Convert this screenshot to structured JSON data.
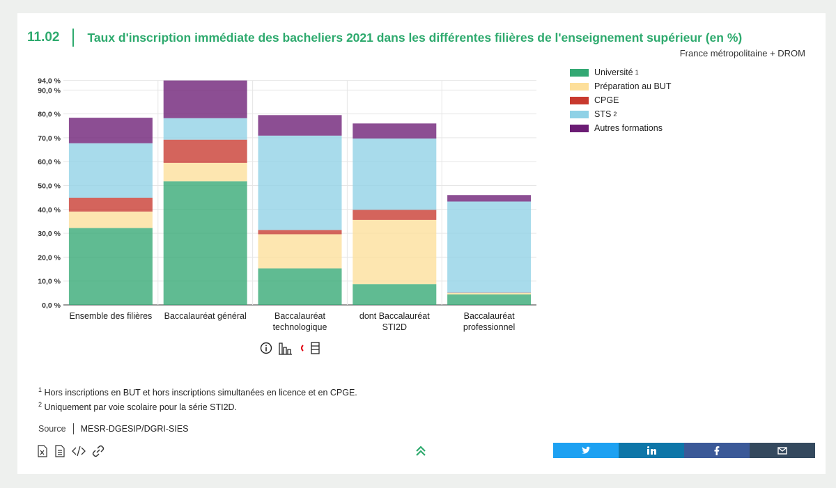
{
  "header": {
    "number": "11.02",
    "title": "Taux d'inscription immédiate des bacheliers 2021 dans les différentes filières de l'enseignement supérieur (en %)",
    "scope": "France métropolitaine + DROM"
  },
  "legend": [
    {
      "label": "Université",
      "sup": "1",
      "color": "#33a873"
    },
    {
      "label": "Préparation au BUT",
      "sup": "",
      "color": "#fddf9a"
    },
    {
      "label": "CPGE",
      "sup": "",
      "color": "#c8392e"
    },
    {
      "label": "STS",
      "sup": "2",
      "color": "#8fd1e6"
    },
    {
      "label": "Autres formations",
      "sup": "",
      "color": "#6b1c74"
    }
  ],
  "chart_data": {
    "type": "bar",
    "stacked": true,
    "categories": [
      "Ensemble des filières",
      "Baccalauréat général",
      "Baccalauréat technologique",
      "dont Baccalauréat STI2D",
      "Baccalauréat professionnel"
    ],
    "series": [
      {
        "name": "Université",
        "values": [
          32.2,
          51.8,
          15.3,
          8.7,
          4.4
        ]
      },
      {
        "name": "Préparation au BUT",
        "values": [
          6.9,
          7.7,
          14.3,
          26.9,
          0.6
        ]
      },
      {
        "name": "CPGE",
        "values": [
          5.8,
          9.7,
          1.8,
          4.2,
          0.1
        ]
      },
      {
        "name": "STS",
        "values": [
          22.8,
          9.0,
          39.5,
          29.9,
          38.2
        ]
      },
      {
        "name": "Autres formations",
        "values": [
          10.7,
          15.8,
          8.6,
          6.3,
          2.7
        ]
      }
    ],
    "yticks": [
      "0,0 %",
      "10,0 %",
      "20,0 %",
      "30,0 %",
      "40,0 %",
      "50,0 %",
      "60,0 %",
      "70,0 %",
      "80,0 %",
      "90,0 %",
      "94,0 %"
    ],
    "ylim": [
      0,
      94
    ],
    "grid": true,
    "legend_position": "top-right"
  },
  "notes": {
    "note1": "Hors inscriptions en BUT et hors inscriptions simultanées en licence et en CPGE.",
    "note2": "Uniquement par voie scolaire pour la série STI2D.",
    "note1_num": "1",
    "note2_num": "2"
  },
  "source": {
    "label": "Source",
    "value": "MESR-DGESIP/DGRI-SIES"
  },
  "tools": [
    "excel-icon",
    "document-icon",
    "code-icon",
    "link-icon"
  ],
  "share": [
    {
      "icon": "twitter-icon",
      "color": "#1da1f2"
    },
    {
      "icon": "linkedin-icon",
      "color": "#0e76a8"
    },
    {
      "icon": "facebook-icon",
      "color": "#3b5998"
    },
    {
      "icon": "mail-icon",
      "color": "#34495e"
    }
  ]
}
